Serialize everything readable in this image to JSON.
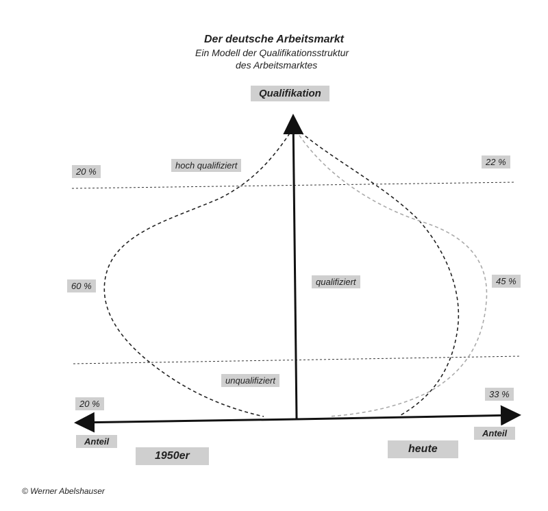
{
  "title": "Der deutsche Arbeitsmarkt",
  "subtitle_line1": "Ein Modell der Qualifikationsstruktur",
  "subtitle_line2": "des Arbeitsmarktes",
  "axis": {
    "vertical": "Qualifikation",
    "left": "Anteil",
    "right": "Anteil"
  },
  "periods": {
    "left": "1950er",
    "right": "heute"
  },
  "levels": {
    "high": "hoch qualifiziert",
    "mid": "qualifiziert",
    "low": "unqualifiziert"
  },
  "shares_1950er": {
    "high": "20 %",
    "mid": "60 %",
    "low": "20 %"
  },
  "shares_heute": {
    "high": "22 %",
    "mid": "45 %",
    "low": "33 %"
  },
  "copyright": "© Werner Abelshauser",
  "colors": {
    "curve": "#222222",
    "curve_today": "#aaaaaa",
    "label_bg": "#cfcfcf"
  }
}
